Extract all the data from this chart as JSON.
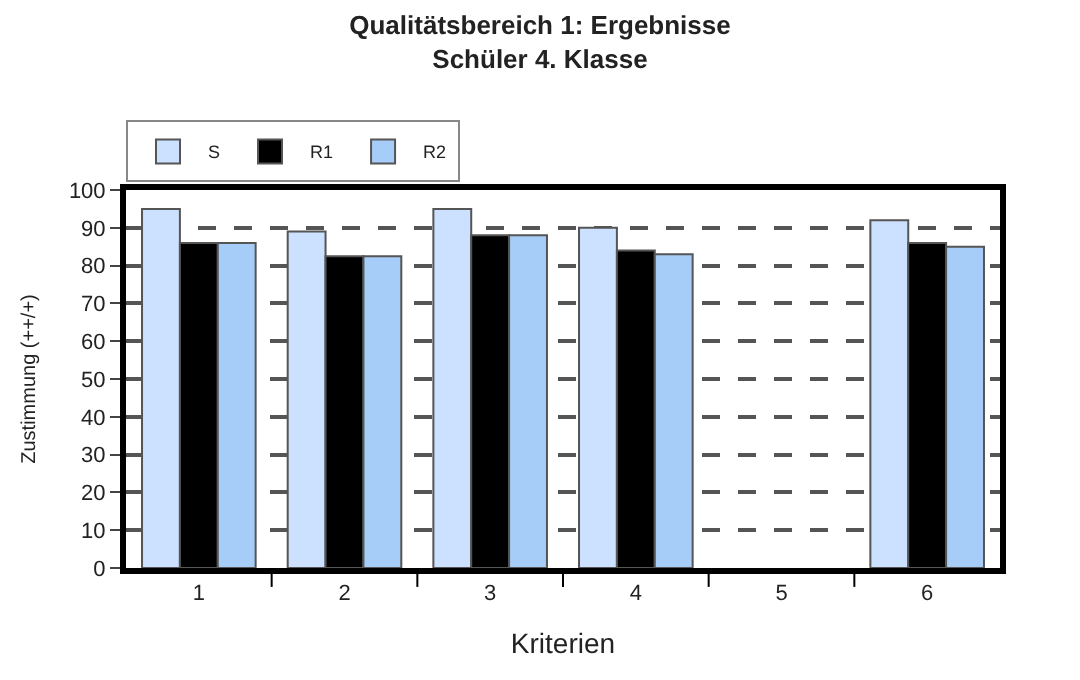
{
  "chart_data": {
    "type": "bar",
    "title": "Qualitätsbereich 1: Ergebnisse\nSchüler 4. Klasse",
    "xlabel": "Kriterien",
    "ylabel": "Zustimmung (++/+)",
    "categories": [
      "1",
      "2",
      "3",
      "4",
      "5",
      "6"
    ],
    "series": [
      {
        "name": "S",
        "color": "#cce0ff",
        "values": [
          95,
          89,
          95,
          90,
          null,
          92
        ]
      },
      {
        "name": "R1",
        "color": "#000000",
        "values": [
          86,
          82.5,
          88,
          84,
          null,
          86
        ]
      },
      {
        "name": "R2",
        "color": "#a6cdf7",
        "values": [
          86,
          82.5,
          88,
          83,
          null,
          85
        ]
      }
    ],
    "ylim": [
      0,
      100
    ],
    "yticks": [
      0,
      10,
      20,
      30,
      40,
      50,
      60,
      70,
      80,
      90,
      100
    ],
    "grid": "y",
    "legend": "top left"
  }
}
